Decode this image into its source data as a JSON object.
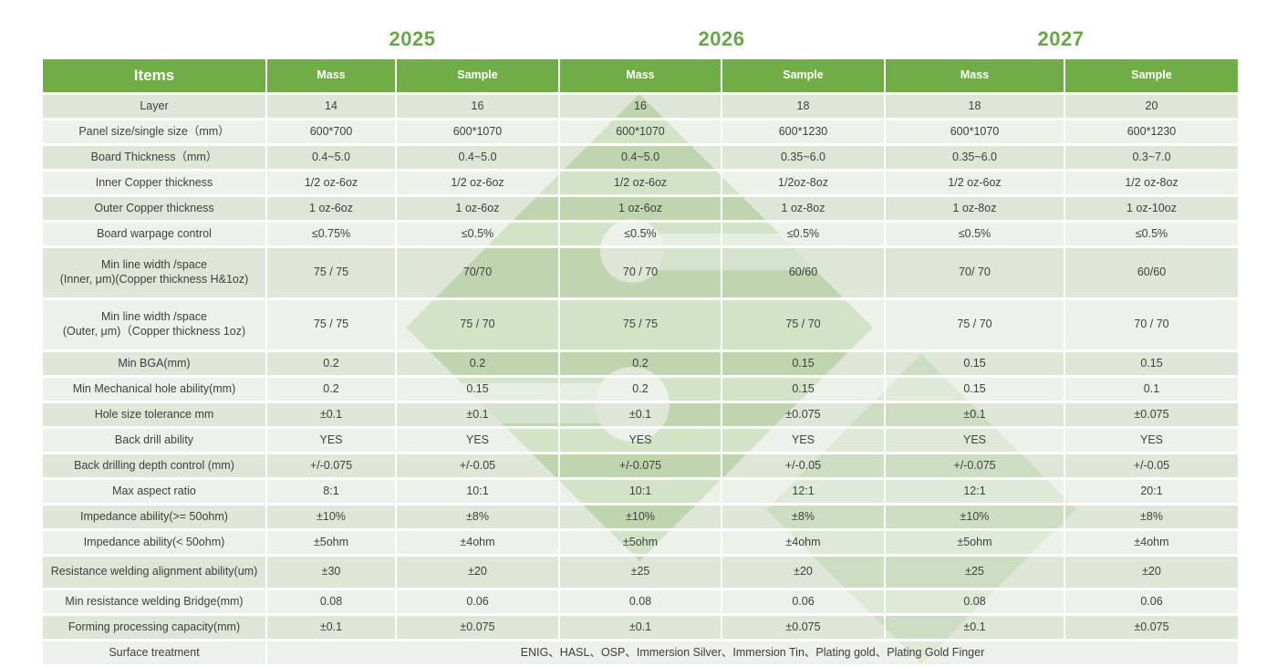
{
  "years": [
    "2025",
    "2026",
    "2027"
  ],
  "header": {
    "items": "Items",
    "cols": [
      "Mass",
      "Sample",
      "Mass",
      "Sample",
      "Mass",
      "Sample"
    ]
  },
  "table": {
    "rows": [
      {
        "label": "Layer",
        "values": [
          "14",
          "16",
          "16",
          "18",
          "18",
          "20"
        ]
      },
      {
        "label": "Panel size/single size（mm）",
        "values": [
          "600*700",
          "600*1070",
          "600*1070",
          "600*1230",
          "600*1070",
          "600*1230"
        ]
      },
      {
        "label": "Board Thickness（mm）",
        "values": [
          "0.4~5.0",
          "0.4~5.0",
          "0.4~5.0",
          "0.35~6.0",
          "0.35~6.0",
          "0.3~7.0"
        ]
      },
      {
        "label": "Inner Copper thickness",
        "values": [
          "1/2 oz-6oz",
          "1/2 oz-6oz",
          "1/2 oz-6oz",
          "1/2oz-8oz",
          "1/2 oz-6oz",
          "1/2 oz-8oz"
        ]
      },
      {
        "label": "Outer Copper thickness",
        "values": [
          "1 oz-6oz",
          "1 oz-6oz",
          "1 oz-6oz",
          "1 oz-8oz",
          "1 oz-8oz",
          "1 oz-10oz"
        ]
      },
      {
        "label": "Board warpage control",
        "values": [
          "≤0.75%",
          "≤0.5%",
          "≤0.5%",
          "≤0.5%",
          "≤0.5%",
          "≤0.5%"
        ]
      },
      {
        "label": "Min line width /space\n(Inner, μm)(Copper thickness H&1oz)",
        "tall": true,
        "values": [
          "75 / 75",
          "70/70",
          "70 / 70",
          "60/60",
          "70/ 70",
          "60/60"
        ]
      },
      {
        "label": "Min line width /space\n(Outer, μm)（Copper thickness 1oz)",
        "tall": true,
        "values": [
          "75 / 75",
          "75 / 70",
          "75 / 75",
          "75 / 70",
          "75 / 70",
          "70 / 70"
        ]
      },
      {
        "label": "Min BGA(mm)",
        "values": [
          "0.2",
          "0.2",
          "0.2",
          "0.15",
          "0.15",
          "0.15"
        ]
      },
      {
        "label": "Min Mechanical hole ability(mm)",
        "values": [
          "0.2",
          "0.15",
          "0.2",
          "0.15",
          "0.15",
          "0.1"
        ]
      },
      {
        "label": "Hole size tolerance  mm",
        "values": [
          "±0.1",
          "±0.1",
          "±0.1",
          "±0.075",
          "±0.1",
          "±0.075"
        ]
      },
      {
        "label": "Back drill ability",
        "values": [
          "YES",
          "YES",
          "YES",
          "YES",
          "YES",
          "YES"
        ]
      },
      {
        "label": "Back drilling depth control (mm)",
        "values": [
          "+/-0.075",
          "+/-0.05",
          "+/-0.075",
          "+/-0.05",
          "+/-0.075",
          "+/-0.05"
        ]
      },
      {
        "label": "Max aspect ratio",
        "values": [
          "8:1",
          "10:1",
          "10:1",
          "12:1",
          "12:1",
          "20:1"
        ]
      },
      {
        "label": "Impedance ability(>= 50ohm)",
        "values": [
          "±10%",
          "±8%",
          "±10%",
          "±8%",
          "±10%",
          "±8%"
        ]
      },
      {
        "label": "Impedance ability(< 50ohm)",
        "values": [
          "±5ohm",
          "±4ohm",
          "±5ohm",
          "±4ohm",
          "±5ohm",
          "±4ohm"
        ]
      },
      {
        "label": "Resistance welding alignment ability(um)",
        "medium": true,
        "values": [
          "±30",
          "±20",
          "±25",
          "±20",
          "±25",
          "±20"
        ]
      },
      {
        "label": "Min resistance welding Bridge(mm)",
        "values": [
          "0.08",
          "0.06",
          "0.08",
          "0.06",
          "0.08",
          "0.06"
        ]
      },
      {
        "label": "Forming processing capacity(mm)",
        "values": [
          "±0.1",
          "±0.075",
          "±0.1",
          "±0.075",
          "±0.1",
          "±0.075"
        ]
      },
      {
        "label": "Surface treatment",
        "span": "ENIG、HASL、OSP、Immersion Silver、Immersion Tin、Plating gold、Plating Gold Finger"
      }
    ]
  },
  "colors": {
    "header_green": "#70ad47",
    "year_green": "#67a846",
    "row_band_dark": "#dfe7da",
    "row_band_light": "#eef2ea",
    "watermark_green": "#badaa9",
    "text": "#404040"
  }
}
